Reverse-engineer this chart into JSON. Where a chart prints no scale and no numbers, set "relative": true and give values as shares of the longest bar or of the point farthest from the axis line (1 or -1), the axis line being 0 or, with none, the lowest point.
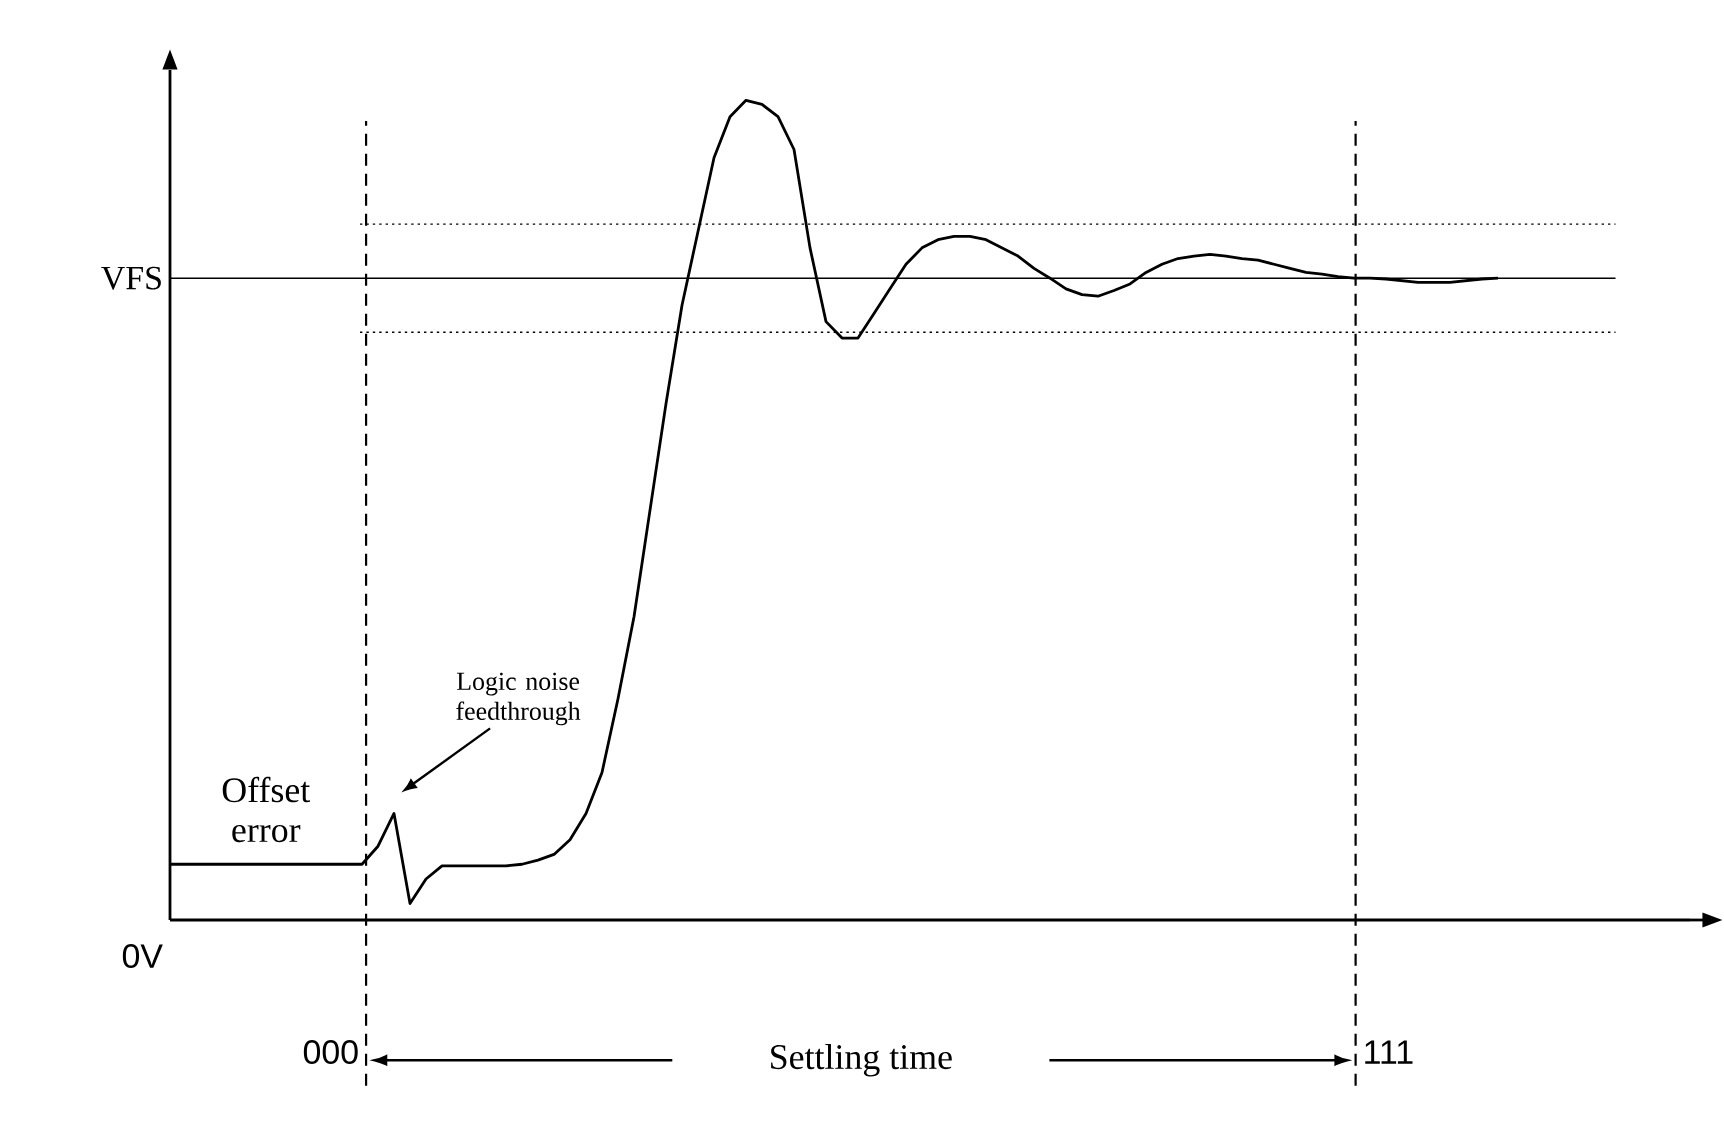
{
  "chart_data": {
    "type": "line",
    "relative": true,
    "categories": [
      null,
      null,
      null,
      null,
      null,
      null,
      null,
      null,
      null,
      null,
      null,
      null,
      null,
      null,
      null,
      null,
      null,
      null,
      null,
      null,
      null,
      null,
      null,
      null,
      null,
      null,
      null,
      null,
      null,
      null,
      null,
      null,
      null,
      null,
      null,
      null,
      null,
      null,
      null,
      null,
      null,
      null,
      null,
      null,
      null,
      null,
      null,
      null,
      null,
      null,
      null,
      null,
      null,
      null,
      null,
      null,
      null,
      null,
      null,
      null,
      null,
      null,
      null,
      null,
      null,
      null,
      null,
      null,
      null,
      null,
      null,
      null,
      null,
      null,
      null,
      null,
      null,
      null,
      null,
      null,
      null,
      null,
      null,
      null,
      null,
      null,
      null,
      null,
      null,
      null,
      null,
      null,
      null,
      null,
      null,
      null
    ],
    "series": [
      {
        "color": "#000000",
        "values": [
          0.068,
          0.068,
          0.068,
          0.068,
          0.068,
          0.068,
          0.068,
          0.068,
          0.068,
          0.068,
          0.068,
          0.068,
          0.068,
          0.09,
          0.13,
          0.02,
          0.05,
          0.066,
          0.066,
          0.066,
          0.066,
          0.066,
          0.068,
          0.073,
          0.08,
          0.098,
          0.13,
          0.18,
          0.27,
          0.37,
          0.5,
          0.63,
          0.75,
          0.84,
          0.93,
          0.98,
          1.0,
          0.995,
          0.98,
          0.94,
          0.82,
          0.73,
          0.71,
          0.71,
          0.74,
          0.77,
          0.8,
          0.82,
          0.83,
          0.834,
          0.834,
          0.83,
          0.82,
          0.81,
          0.795,
          0.783,
          0.77,
          0.763,
          0.761,
          0.768,
          0.776,
          0.79,
          0.8,
          0.807,
          0.81,
          0.812,
          0.81,
          0.807,
          0.805,
          0.8,
          0.795,
          0.79,
          0.788,
          0.785,
          0.783,
          0.783,
          0.782,
          0.78,
          0.778,
          0.778,
          0.778,
          0.78,
          0.782,
          0.783,
          null,
          null,
          null,
          null,
          null,
          null,
          null,
          null,
          null,
          null,
          null,
          null
        ]
      }
    ],
    "ref_lines": [
      {
        "axis": "y",
        "value": 0.783,
        "label": "VFS",
        "line_style": "solid",
        "color": "#000000"
      },
      {
        "axis": "y",
        "value": 0.849,
        "line_style": "dotted",
        "color": "#000000"
      },
      {
        "axis": "y",
        "value": 0.717,
        "line_style": "dotted",
        "color": "#000000"
      }
    ],
    "annotations": [
      "Offset error",
      "Logic noise feedthrough",
      "Settling time",
      "000",
      "111",
      "0V"
    ]
  }
}
